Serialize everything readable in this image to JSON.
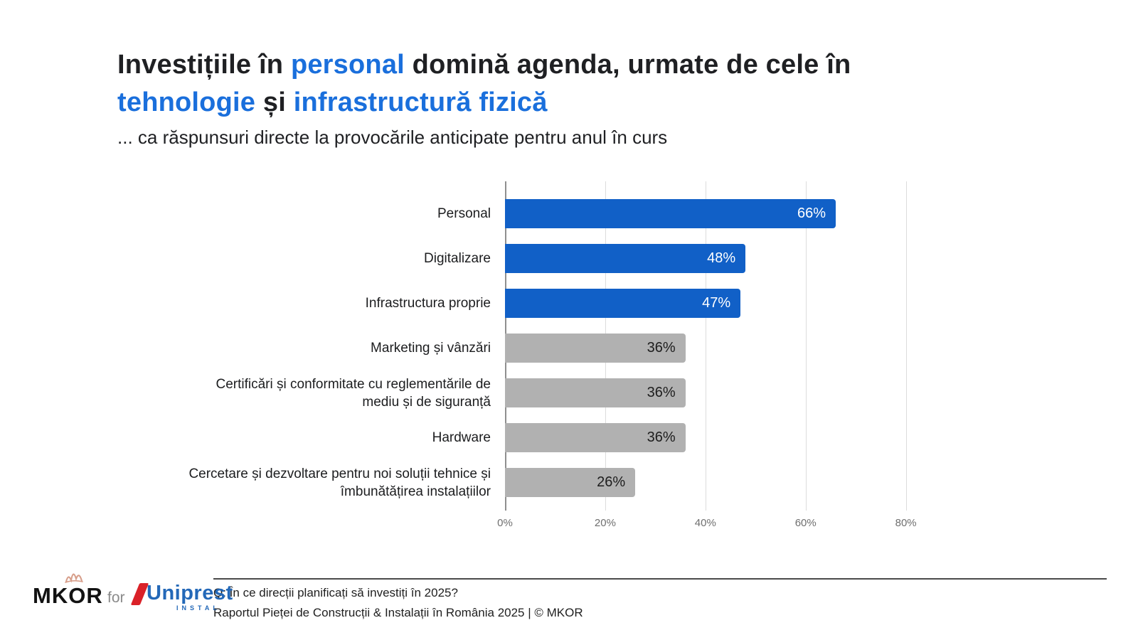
{
  "title": {
    "line1": [
      {
        "text": "Investițiile în ",
        "accent": false
      },
      {
        "text": "personal",
        "accent": true
      },
      {
        "text": " domină agenda, urmate de cele în",
        "accent": false
      }
    ],
    "line2": [
      {
        "text": "tehnologie",
        "accent": true
      },
      {
        "text": " și ",
        "accent": false
      },
      {
        "text": "infrastructură fizică",
        "accent": true
      }
    ],
    "subtitle": "... ca răspunsuri directe la provocările anticipate pentru anul în curs"
  },
  "colors": {
    "accent_text": "#1a6fdc",
    "bar_blue": "#1160c7",
    "bar_gray": "#b1b1b1",
    "value_on_blue": "#ffffff",
    "value_on_gray": "#1d1d1d",
    "gridline": "#dcdcdc",
    "axis": "#8f8f8f",
    "uniprest_blue": "#2368b8",
    "uniprest_red": "#da2128",
    "crown_tan": "#d79e8a"
  },
  "chart_data": {
    "type": "bar",
    "orientation": "horizontal",
    "title": "",
    "xlabel": "",
    "ylabel": "",
    "categories": [
      "Personal",
      "Digitalizare",
      "Infrastructura proprie",
      "Marketing și vânzări",
      "Certificări și conformitate cu reglementările de mediu și de siguranță",
      "Hardware",
      "Cercetare și dezvoltare pentru noi soluții tehnice și îmbunătățirea instalațiilor"
    ],
    "values": [
      66,
      48,
      47,
      36,
      36,
      36,
      26
    ],
    "value_labels": [
      "66%",
      "48%",
      "47%",
      "36%",
      "36%",
      "36%",
      "26%"
    ],
    "bar_palette": [
      "blue",
      "blue",
      "blue",
      "gray",
      "gray",
      "gray",
      "gray"
    ],
    "x_ticks": [
      {
        "value": 0,
        "label": "0%"
      },
      {
        "value": 20,
        "label": "20%"
      },
      {
        "value": 40,
        "label": "40%"
      },
      {
        "value": 60,
        "label": "60%"
      },
      {
        "value": 80,
        "label": "80%"
      }
    ],
    "xlim": [
      0,
      88
    ],
    "grid": "vertical",
    "legend": "none"
  },
  "footer": {
    "q_line": "Q: În ce direcții planificați să investiți în 2025?",
    "source_line": "Raportul Pieței de Construcții & Instalații în România 2025 | © MKOR",
    "mkor_logo": "MKOR",
    "for_label": "for",
    "partner_logo": "Uniprest",
    "partner_sub": "INSTAL"
  }
}
